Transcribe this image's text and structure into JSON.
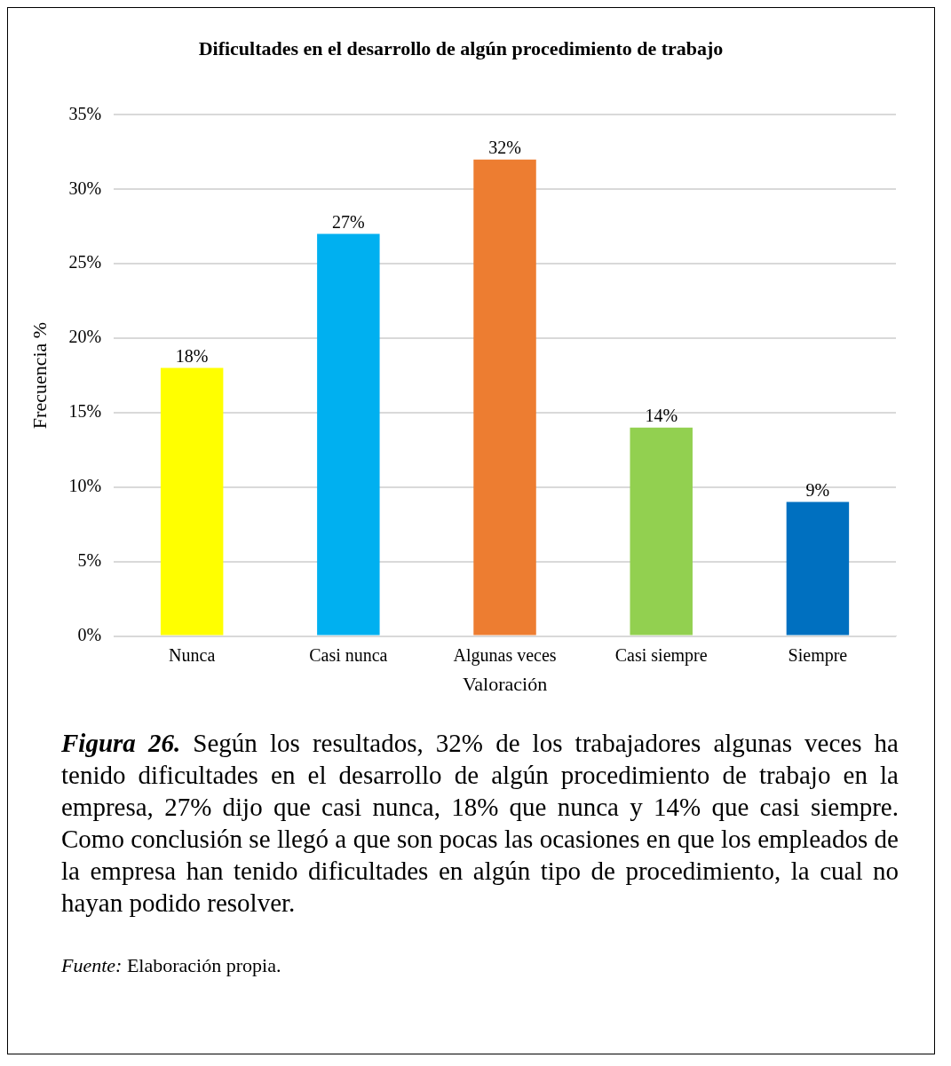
{
  "chart_data": {
    "type": "bar",
    "title": "Dificultades en el desarrollo de algún procedimiento de trabajo",
    "xlabel": "Valoración",
    "ylabel": "Frecuencia %",
    "categories": [
      "Nunca",
      "Casi nunca",
      "Algunas veces",
      "Casi siempre",
      "Siempre"
    ],
    "values": [
      18,
      27,
      32,
      14,
      9
    ],
    "colors": [
      "#ffff00",
      "#00b0f0",
      "#ed7d31",
      "#92d050",
      "#0070c0"
    ],
    "value_labels": [
      "18%",
      "27%",
      "32%",
      "14%",
      "9%"
    ],
    "ylim": [
      0,
      35
    ],
    "yticks": [
      {
        "value": 0,
        "label": "0%"
      },
      {
        "value": 5,
        "label": "5%"
      },
      {
        "value": 10,
        "label": "10%"
      },
      {
        "value": 15,
        "label": "15%"
      },
      {
        "value": 20,
        "label": "20%"
      },
      {
        "value": 25,
        "label": "25%"
      },
      {
        "value": 30,
        "label": "30%"
      },
      {
        "value": 35,
        "label": "35%"
      }
    ],
    "grid": "y",
    "legend": false,
    "annotations": [
      "Figura 26.",
      "Según los resultados, 32% de los trabajadores algunas veces ha tenido dificultades en el desarrollo de algún procedimiento de trabajo en la empresa, 27% dijo que casi nunca, 18% que nunca y 14% que casi siempre. Como conclusión se llegó a que son pocas las ocasiones en que los empleados de la empresa han tenido dificultades en algún tipo de procedimiento, la cual no hayan podido resolver.",
      "Fuente:",
      "Elaboración propia."
    ]
  }
}
